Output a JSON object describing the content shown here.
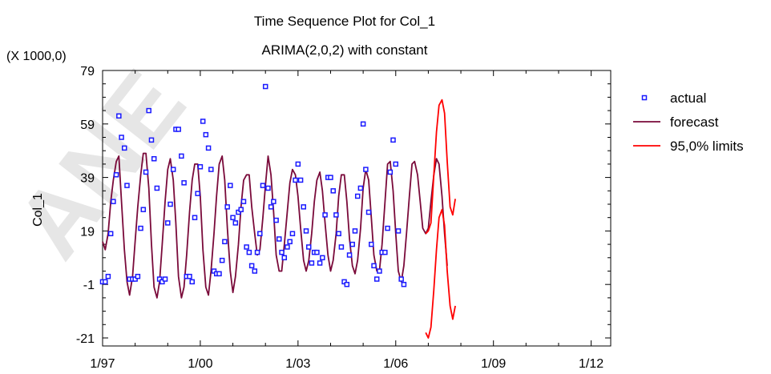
{
  "chart_data": {
    "type": "line",
    "title": "Time Sequence Plot for Col_1",
    "subtitle": "ARIMA(2,0,2) with constant",
    "ylabel": "Col_1",
    "y_multiplier": "(X 1000,0)",
    "xlim": [
      1997.0,
      2012.6
    ],
    "ylim": [
      -24,
      79
    ],
    "x_ticks": [
      1997,
      2000,
      2003,
      2006,
      2009,
      2012
    ],
    "x_tick_labels": [
      "1/97",
      "1/00",
      "1/03",
      "1/06",
      "1/09",
      "1/12"
    ],
    "y_ticks": [
      -21,
      -1,
      19,
      39,
      59,
      79
    ],
    "y_tick_labels": [
      "-21",
      "-1",
      "19",
      "39",
      "59",
      "79"
    ],
    "grid": false,
    "legend_position": "right",
    "series": [
      {
        "name": "actual",
        "style": "markers",
        "color": "#1a1aff",
        "x": [
          1997.0,
          1997.08,
          1997.17,
          1997.25,
          1997.33,
          1997.42,
          1997.5,
          1997.58,
          1997.67,
          1997.75,
          1997.83,
          1997.92,
          1998.0,
          1998.08,
          1998.17,
          1998.25,
          1998.33,
          1998.42,
          1998.5,
          1998.58,
          1998.67,
          1998.75,
          1998.83,
          1998.92,
          1999.0,
          1999.08,
          1999.17,
          1999.25,
          1999.33,
          1999.42,
          1999.5,
          1999.58,
          1999.67,
          1999.75,
          1999.83,
          1999.92,
          2000.0,
          2000.08,
          2000.17,
          2000.25,
          2000.33,
          2000.42,
          2000.5,
          2000.58,
          2000.67,
          2000.75,
          2000.83,
          2000.92,
          2001.0,
          2001.08,
          2001.17,
          2001.25,
          2001.33,
          2001.42,
          2001.5,
          2001.58,
          2001.67,
          2001.75,
          2001.83,
          2001.92,
          2002.0,
          2002.08,
          2002.17,
          2002.25,
          2002.33,
          2002.42,
          2002.5,
          2002.58,
          2002.67,
          2002.75,
          2002.83,
          2002.92,
          2003.0,
          2003.08,
          2003.17,
          2003.25,
          2003.33,
          2003.42,
          2003.5,
          2003.58,
          2003.67,
          2003.75,
          2003.83,
          2003.92,
          2004.0,
          2004.08,
          2004.17,
          2004.25,
          2004.33,
          2004.42,
          2004.5,
          2004.58,
          2004.67,
          2004.75,
          2004.83,
          2004.92,
          2005.0,
          2005.08,
          2005.17,
          2005.25,
          2005.33,
          2005.42,
          2005.5,
          2005.58,
          2005.67,
          2005.75,
          2005.83,
          2005.92,
          2006.0,
          2006.08,
          2006.17,
          2006.25,
          2006.33,
          2006.42,
          2006.5,
          2006.58,
          2006.67,
          2006.75,
          2006.83,
          2006.92
        ],
        "y": [
          0,
          0,
          2,
          18,
          30,
          40,
          62,
          54,
          50,
          36,
          1,
          1,
          1,
          2,
          20,
          27,
          41,
          64,
          53,
          46,
          35,
          1,
          0,
          1,
          22,
          29,
          42,
          57,
          57,
          47,
          37,
          2,
          2,
          0,
          24,
          33,
          43,
          60,
          55,
          50,
          42,
          4,
          3,
          3,
          8,
          15,
          28,
          36,
          24,
          22,
          26,
          27,
          30,
          13,
          11,
          6,
          4,
          11,
          18,
          36,
          73,
          35,
          28,
          30,
          23,
          16,
          11,
          9,
          13,
          15,
          18,
          38,
          44,
          38,
          28,
          19,
          13,
          7,
          11,
          11,
          7,
          9,
          25,
          39,
          39,
          34,
          25,
          18,
          13,
          0,
          -1,
          10,
          14,
          19,
          32,
          35,
          59,
          42,
          26,
          14,
          6,
          1,
          4,
          11,
          11,
          20,
          41,
          53,
          44,
          19,
          1,
          -1,
          null,
          null,
          null,
          null,
          null,
          null,
          null,
          null
        ]
      },
      {
        "name": "forecast",
        "style": "line",
        "color": "#7a0a3a",
        "x": [
          1997.0,
          1997.08,
          1997.17,
          1997.25,
          1997.33,
          1997.42,
          1997.5,
          1997.58,
          1997.67,
          1997.75,
          1997.83,
          1997.92,
          1998.0,
          1998.08,
          1998.17,
          1998.25,
          1998.33,
          1998.42,
          1998.5,
          1998.58,
          1998.67,
          1998.75,
          1998.83,
          1998.92,
          1999.0,
          1999.08,
          1999.17,
          1999.25,
          1999.33,
          1999.42,
          1999.5,
          1999.58,
          1999.67,
          1999.75,
          1999.83,
          1999.92,
          2000.0,
          2000.08,
          2000.17,
          2000.25,
          2000.33,
          2000.42,
          2000.5,
          2000.58,
          2000.67,
          2000.75,
          2000.83,
          2000.92,
          2001.0,
          2001.08,
          2001.17,
          2001.25,
          2001.33,
          2001.42,
          2001.5,
          2001.58,
          2001.67,
          2001.75,
          2001.83,
          2001.92,
          2002.0,
          2002.08,
          2002.17,
          2002.25,
          2002.33,
          2002.42,
          2002.5,
          2002.58,
          2002.67,
          2002.75,
          2002.83,
          2002.92,
          2003.0,
          2003.08,
          2003.17,
          2003.25,
          2003.33,
          2003.42,
          2003.5,
          2003.58,
          2003.67,
          2003.75,
          2003.83,
          2003.92,
          2004.0,
          2004.08,
          2004.17,
          2004.25,
          2004.33,
          2004.42,
          2004.5,
          2004.58,
          2004.67,
          2004.75,
          2004.83,
          2004.92,
          2005.0,
          2005.08,
          2005.17,
          2005.25,
          2005.33,
          2005.42,
          2005.5,
          2005.58,
          2005.67,
          2005.75,
          2005.83,
          2005.92,
          2006.0,
          2006.08,
          2006.17,
          2006.25,
          2006.33,
          2006.42,
          2006.5,
          2006.58,
          2006.67,
          2006.75,
          2006.83,
          2006.92,
          2007.0,
          2007.08,
          2007.17,
          2007.25,
          2007.33,
          2007.42,
          2007.5,
          2007.58,
          2007.67,
          2007.75,
          2007.83,
          2007.92
        ],
        "y": [
          15,
          12,
          18,
          30,
          38,
          45,
          47,
          30,
          12,
          0,
          -5,
          2,
          15,
          28,
          40,
          48,
          48,
          35,
          14,
          -2,
          -6,
          0,
          14,
          30,
          42,
          46,
          38,
          22,
          2,
          -6,
          -2,
          10,
          26,
          38,
          44,
          44,
          32,
          12,
          -2,
          -5,
          4,
          18,
          32,
          44,
          47,
          38,
          20,
          4,
          -4,
          2,
          14,
          28,
          38,
          40,
          40,
          28,
          18,
          10,
          12,
          24,
          36,
          47,
          40,
          26,
          10,
          4,
          4,
          14,
          26,
          37,
          42,
          40,
          32,
          20,
          8,
          4,
          8,
          18,
          30,
          38,
          41,
          34,
          22,
          10,
          4,
          8,
          18,
          32,
          40,
          40,
          30,
          16,
          6,
          3,
          8,
          20,
          35,
          42,
          38,
          24,
          10,
          4,
          4,
          14,
          30,
          44,
          45,
          34,
          18,
          4,
          0,
          6,
          18,
          32,
          44,
          45,
          40,
          30,
          20,
          18,
          20,
          30,
          40,
          46,
          44,
          32,
          18,
          6,
          null,
          null,
          null,
          null
        ]
      },
      {
        "name": "95,0% limits",
        "style": "line",
        "color": "#ff0000",
        "upper": {
          "x": [
            2006.92,
            2007.0,
            2007.08,
            2007.17,
            2007.25,
            2007.33,
            2007.42,
            2007.5,
            2007.58,
            2007.67,
            2007.75,
            2007.83
          ],
          "y": [
            18,
            19,
            22,
            40,
            56,
            66,
            68,
            63,
            45,
            28,
            25,
            31
          ]
        },
        "lower": {
          "x": [
            2006.92,
            2007.0,
            2007.08,
            2007.17,
            2007.25,
            2007.33,
            2007.42,
            2007.5,
            2007.58,
            2007.67,
            2007.75,
            2007.83
          ],
          "y": [
            -19,
            -21,
            -17,
            -3,
            12,
            24,
            27,
            21,
            4,
            -9,
            -14,
            -9
          ]
        }
      }
    ],
    "legend": [
      {
        "label": "actual",
        "color": "#1a1aff",
        "style": "marker"
      },
      {
        "label": "forecast",
        "color": "#7a0a3a",
        "style": "line"
      },
      {
        "label": "95,0% limits",
        "color": "#ff0000",
        "style": "line"
      }
    ]
  },
  "watermark": "ANE"
}
